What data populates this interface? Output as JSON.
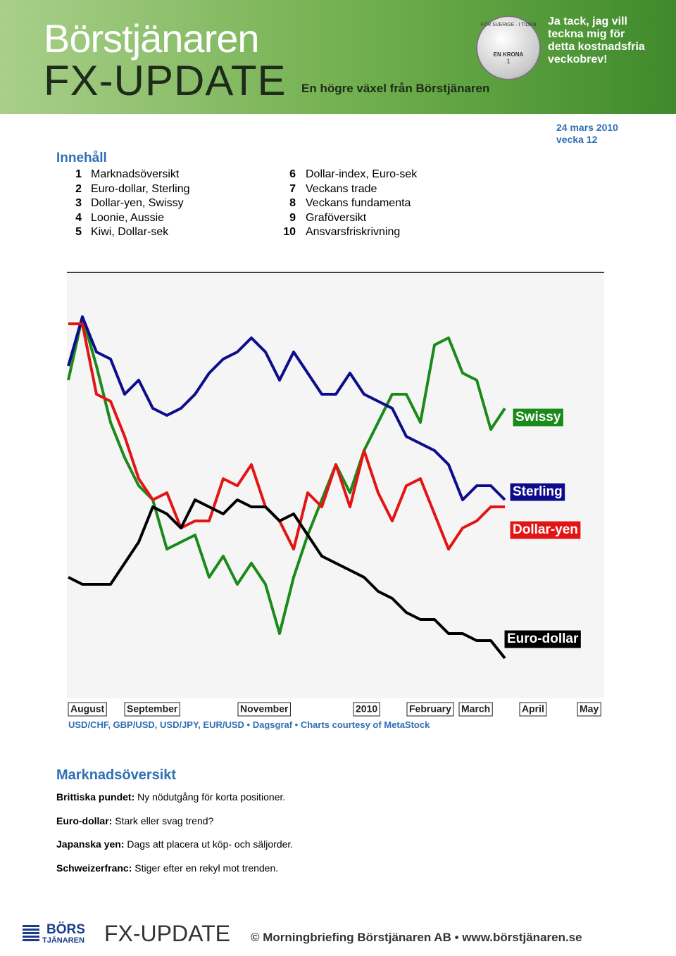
{
  "header": {
    "title": "Börstjänaren",
    "product": "FX-UPDATE",
    "tagline": "En högre växel från Börstjänaren",
    "coin": {
      "ring": "FÖR SVERIGE · I TIDEN",
      "denomination": "EN KRONA",
      "number": "1"
    },
    "cta": [
      "Ja tack, jag vill",
      "teckna mig för",
      "detta kostnadsfria",
      "veckobrev!"
    ]
  },
  "date": "24 mars 2010",
  "week": "vecka 12",
  "contents": {
    "title": "Innehåll",
    "items": [
      {
        "num": 1,
        "label": "Marknadsöversikt"
      },
      {
        "num": 2,
        "label": "Euro-dollar, Sterling"
      },
      {
        "num": 3,
        "label": "Dollar-yen, Swissy"
      },
      {
        "num": 4,
        "label": "Loonie, Aussie"
      },
      {
        "num": 5,
        "label": "Kiwi, Dollar-sek"
      },
      {
        "num": 6,
        "label": "Dollar-index, Euro-sek"
      },
      {
        "num": 7,
        "label": "Veckans trade"
      },
      {
        "num": 8,
        "label": "Veckans fundamenta"
      },
      {
        "num": 9,
        "label": "Graföversikt"
      },
      {
        "num": 10,
        "label": "Ansvarsfriskrivning"
      }
    ]
  },
  "chart_data": {
    "type": "line",
    "ylim": [
      0,
      100
    ],
    "x_labels": [
      "August",
      "September",
      "November",
      "2010",
      "February",
      "March",
      "April",
      "May"
    ],
    "series": [
      {
        "name": "Swissy",
        "color": "#1a8a1a",
        "values": [
          80,
          98,
          84,
          68,
          58,
          50,
          46,
          32,
          34,
          36,
          24,
          30,
          22,
          28,
          22,
          8,
          24,
          36,
          46,
          56,
          48,
          60,
          68,
          76,
          76,
          68,
          90,
          92,
          82,
          80,
          66,
          72
        ]
      },
      {
        "name": "Sterling",
        "color": "#0c0c8c",
        "values": [
          84,
          98,
          88,
          86,
          76,
          80,
          72,
          70,
          72,
          76,
          82,
          86,
          88,
          92,
          88,
          80,
          88,
          82,
          76,
          76,
          82,
          76,
          74,
          72,
          64,
          62,
          60,
          56,
          46,
          50,
          50,
          46
        ]
      },
      {
        "name": "Dollar-yen",
        "color": "#e31414",
        "values": [
          96,
          96,
          76,
          74,
          64,
          52,
          46,
          48,
          38,
          40,
          40,
          52,
          50,
          56,
          44,
          40,
          32,
          48,
          44,
          56,
          44,
          60,
          48,
          40,
          50,
          52,
          42,
          32,
          38,
          40,
          44,
          44
        ]
      },
      {
        "name": "Euro-dollar",
        "color": "#000000",
        "values": [
          24,
          22,
          22,
          22,
          28,
          34,
          44,
          42,
          38,
          46,
          44,
          42,
          46,
          44,
          44,
          40,
          42,
          36,
          30,
          28,
          26,
          24,
          20,
          18,
          14,
          12,
          12,
          8,
          8,
          6,
          6,
          1
        ]
      }
    ]
  },
  "caption": "USD/CHF, GBP/USD, USD/JPY, EUR/USD • Dagsgraf • Charts courtesy of MetaStock",
  "section": {
    "title": "Marknadsöversikt",
    "items": [
      {
        "lead": "Brittiska pundet:",
        "text": " Ny nödutgång för korta positioner."
      },
      {
        "lead": "Euro-dollar:",
        "text": " Stark eller svag trend?"
      },
      {
        "lead": "Japanska yen:",
        "text": " Dags att placera ut köp- och säljorder."
      },
      {
        "lead": "Schweizerfranc:",
        "text": " Stiger efter en rekyl mot trenden."
      }
    ]
  },
  "footer": {
    "logo_top": "BÖRS",
    "logo_bottom": "TJÄNAREN",
    "product": "FX-UPDATE",
    "copyright": "© Morningbriefing Börstjänaren AB • www.börstjänaren.se"
  }
}
